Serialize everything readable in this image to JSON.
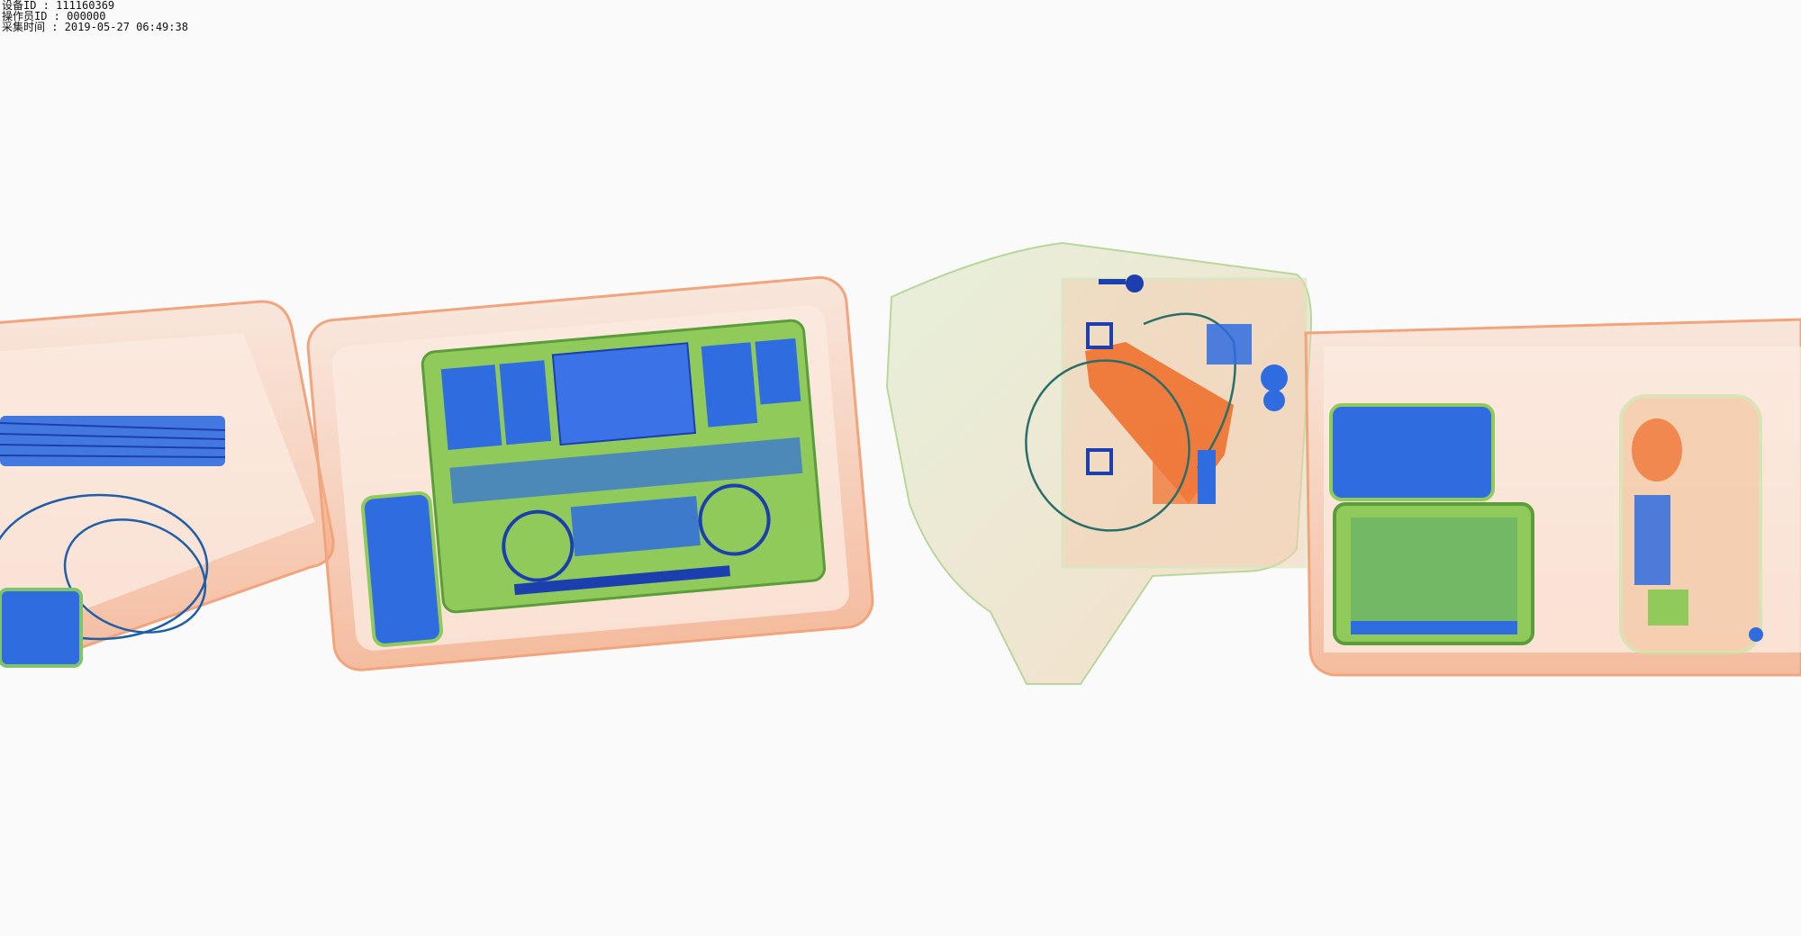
{
  "header": {
    "device_id": "设备ID : 111160369",
    "operator_id": "操作员ID : 000000",
    "capture_time": "采集时间 : 2019-05-27 06:49:38"
  },
  "scan_image": {
    "type": "x-ray baggage scan",
    "palette": {
      "organic": "#f07a3c",
      "mixed": "#8fca5a",
      "metal": "#2b63d9",
      "background": "#fafafa"
    },
    "items": [
      "bin-1-cables-and-charger",
      "bin-2-laptop-and-phone",
      "backpack",
      "bin-3-tablets-and-pouch"
    ]
  }
}
